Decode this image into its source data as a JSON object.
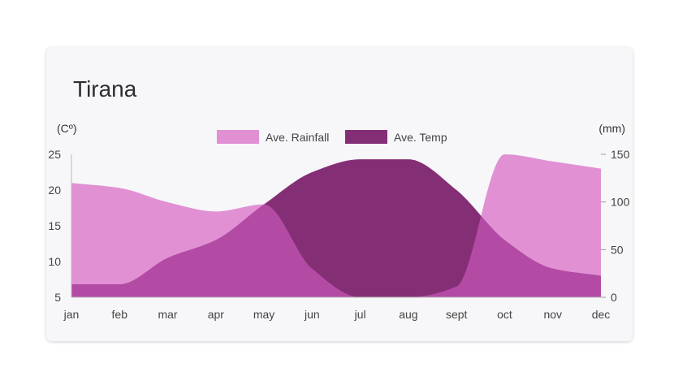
{
  "chart_data": {
    "type": "area",
    "title": "Tirana",
    "categories": [
      "jan",
      "feb",
      "mar",
      "apr",
      "may",
      "jun",
      "jul",
      "aug",
      "sept",
      "oct",
      "nov",
      "dec"
    ],
    "left_axis": {
      "label": "(Cº)",
      "ylim": [
        5,
        25
      ],
      "ticks": [
        5,
        10,
        15,
        20,
        25
      ]
    },
    "right_axis": {
      "label": "(mm)",
      "ylim": [
        0,
        150
      ],
      "ticks": [
        0,
        50,
        100,
        150
      ]
    },
    "legend_position": "top-center",
    "grid": false,
    "series": [
      {
        "name": "Ave. Rainfall",
        "axis": "left",
        "color": "#e090d3",
        "values": [
          21,
          20.3,
          18.3,
          17,
          18,
          9,
          5,
          5,
          6.5,
          25,
          24,
          23
        ]
      },
      {
        "name": "Ave. Temp",
        "axis": "left",
        "color": "#842f75",
        "values": [
          6.8,
          6.8,
          10.5,
          13,
          18,
          22.5,
          24.3,
          24.3,
          20,
          13,
          9,
          8
        ]
      }
    ],
    "overlap_color": "#b34ba5"
  }
}
